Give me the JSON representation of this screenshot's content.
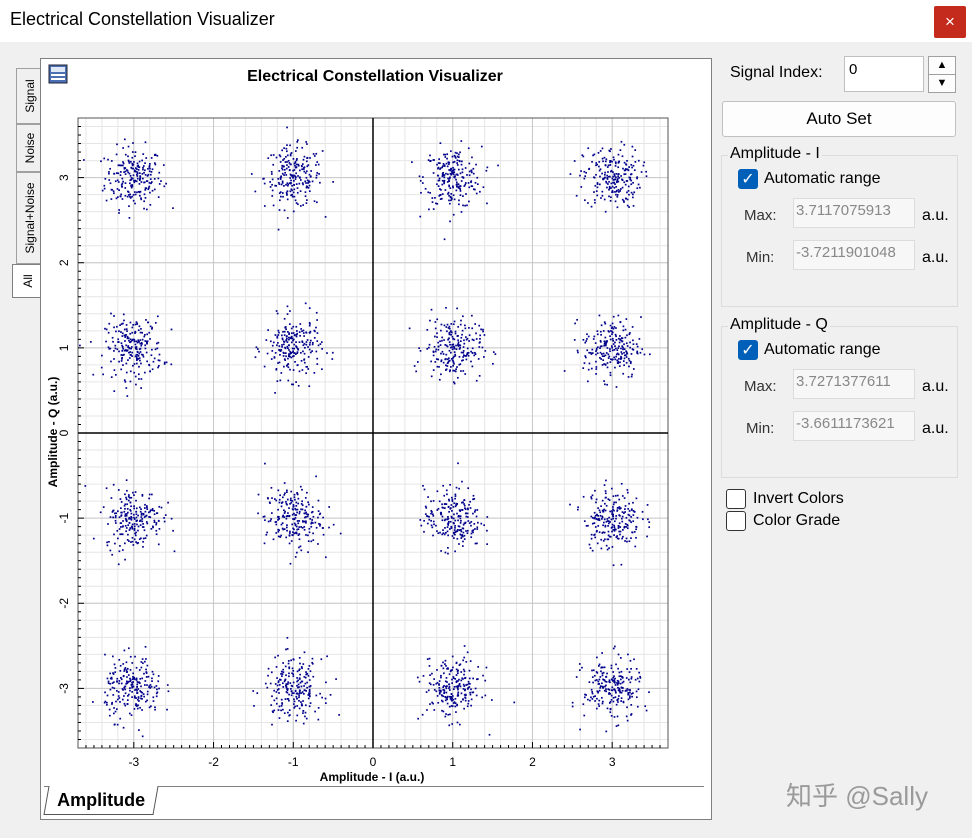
{
  "window": {
    "title": "Electrical Constellation Visualizer",
    "close_glyph": "×"
  },
  "side_tabs": [
    {
      "label": "Signal",
      "active": false
    },
    {
      "label": "Noise",
      "active": false
    },
    {
      "label": "Signal+Noise",
      "active": false
    },
    {
      "label": "All",
      "active": true
    }
  ],
  "plot": {
    "bottom_tab": "Amplitude"
  },
  "controls": {
    "signal_index_label": "Signal Index:",
    "signal_index_value": "0",
    "spin_up": "▲",
    "spin_down": "▼",
    "auto_set_label": "Auto Set",
    "amp_i": {
      "title": "Amplitude - I",
      "auto_range_label": "Automatic range",
      "auto_range_checked": true,
      "max_label": "Max:",
      "max_value": "3.7117075913",
      "min_label": "Min:",
      "min_value": "-3.7211901048",
      "unit": "a.u."
    },
    "amp_q": {
      "title": "Amplitude - Q",
      "auto_range_label": "Automatic range",
      "auto_range_checked": true,
      "max_label": "Max:",
      "max_value": "3.7271377611",
      "min_label": "Min:",
      "min_value": "-3.6611173621",
      "unit": "a.u."
    },
    "invert_colors_label": "Invert Colors",
    "invert_colors_checked": false,
    "color_grade_label": "Color Grade",
    "color_grade_checked": false
  },
  "watermark": "知乎 @Sally",
  "chart_data": {
    "type": "scatter",
    "title": "Electrical Constellation Visualizer",
    "xlabel": "Amplitude - I (a.u.)",
    "ylabel": "Amplitude - Q (a.u.)",
    "xlim": [
      -3.7,
      3.7
    ],
    "ylim": [
      -3.7,
      3.7
    ],
    "xticks": [
      -3,
      -2,
      -1,
      0,
      1,
      2,
      3
    ],
    "yticks": [
      -3,
      -2,
      -1,
      0,
      1,
      2,
      3
    ],
    "grid": true,
    "point_color": "#00008b",
    "clusters": [
      {
        "x": -3,
        "y": 3
      },
      {
        "x": -1,
        "y": 3
      },
      {
        "x": 1,
        "y": 3
      },
      {
        "x": 3,
        "y": 3
      },
      {
        "x": -3,
        "y": 1
      },
      {
        "x": -1,
        "y": 1
      },
      {
        "x": 1,
        "y": 1
      },
      {
        "x": 3,
        "y": 1
      },
      {
        "x": -3,
        "y": -1
      },
      {
        "x": -1,
        "y": -1
      },
      {
        "x": 1,
        "y": -1
      },
      {
        "x": 3,
        "y": -1
      },
      {
        "x": -3,
        "y": -3
      },
      {
        "x": -1,
        "y": -3
      },
      {
        "x": 1,
        "y": -3
      },
      {
        "x": 3,
        "y": -3
      }
    ],
    "cluster_spread": 0.18
  }
}
